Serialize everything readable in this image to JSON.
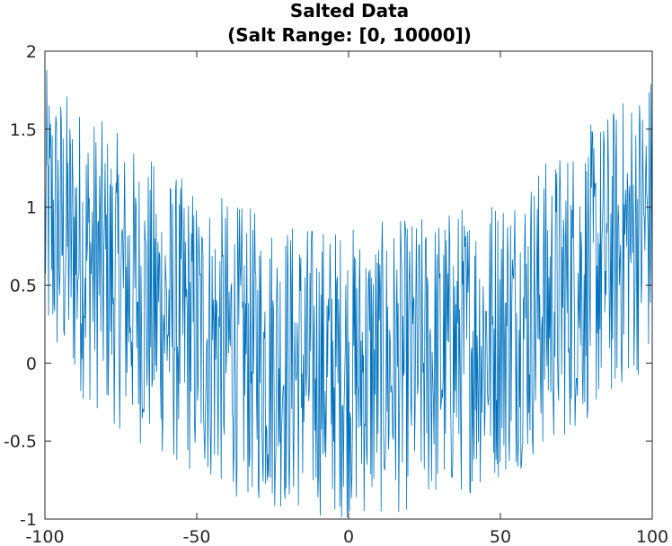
{
  "chart_data": {
    "type": "line",
    "title": "Salted Data",
    "subtitle": "(Salt Range: [0, 10000])",
    "xlabel": "",
    "ylabel": "",
    "xlim": [
      -100,
      100
    ],
    "ylim": [
      -1,
      2
    ],
    "x_ticks": [
      -100,
      -50,
      0,
      50,
      100
    ],
    "x_tick_labels": [
      "-100",
      "-50",
      "0",
      "50",
      "100"
    ],
    "y_ticks": [
      -1,
      -0.5,
      0,
      0.5,
      1,
      1.5,
      2
    ],
    "y_tick_labels": [
      "-1",
      "-0.5",
      "0",
      "0.5",
      "1",
      "1.5",
      "2"
    ],
    "grid": false,
    "legend": "none",
    "series": [
      {
        "color": "#0072BD",
        "x_start": -100,
        "x_end": 100,
        "point_count": 1000,
        "trend": "parabolic baseline about 0.0001*x^2 (1 at x=-100, 0 at x=0, 1 at x=100)",
        "noise": "dense random noise spanning about -1 to +0.9 around the baseline",
        "approx_envelope": [
          {
            "x": -100,
            "min": 0.0,
            "max": 2.0
          },
          {
            "x": -75,
            "min": -0.3,
            "max": 1.5
          },
          {
            "x": -50,
            "min": -0.6,
            "max": 1.2
          },
          {
            "x": -25,
            "min": -0.85,
            "max": 1.0
          },
          {
            "x": 0,
            "min": -1.0,
            "max": 0.95
          },
          {
            "x": 25,
            "min": -0.85,
            "max": 1.0
          },
          {
            "x": 50,
            "min": -0.6,
            "max": 1.2
          },
          {
            "x": 75,
            "min": -0.3,
            "max": 1.5
          },
          {
            "x": 100,
            "min": 0.0,
            "max": 1.9
          }
        ]
      }
    ]
  }
}
